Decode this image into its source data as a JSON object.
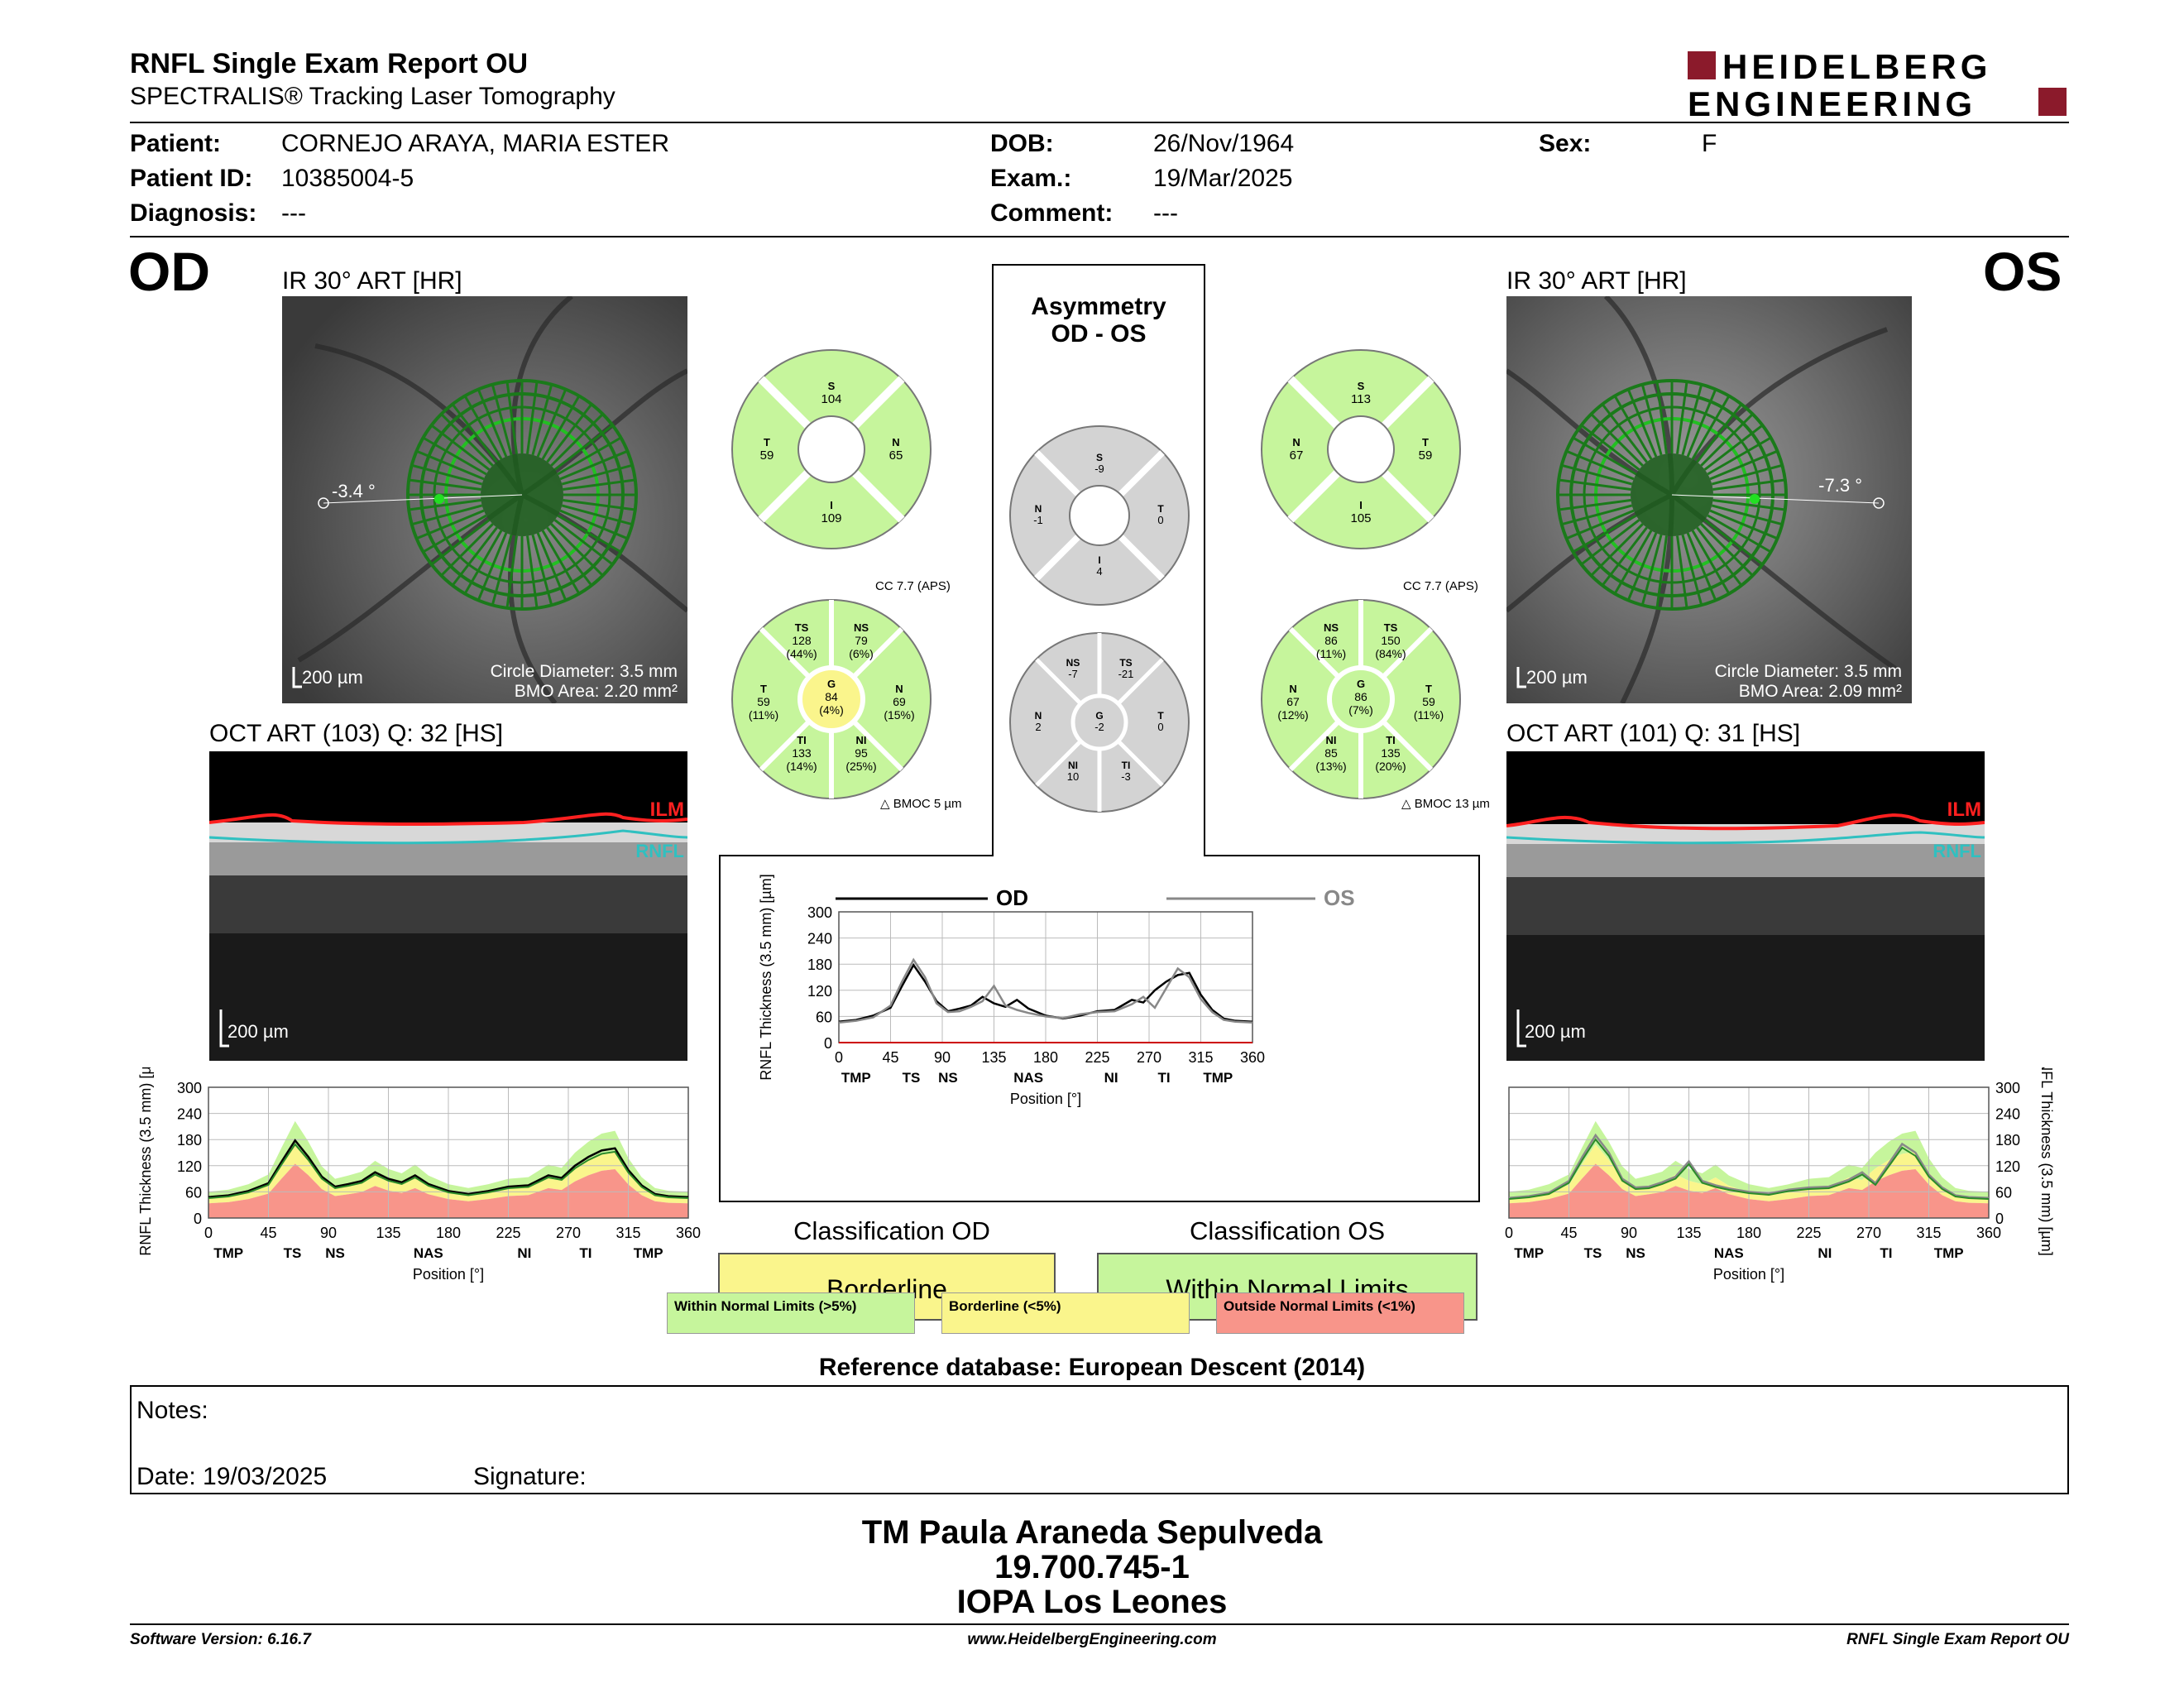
{
  "header": {
    "title": "RNFL Single Exam Report OU",
    "subtitle": "SPECTRALIS® Tracking Laser Tomography",
    "brand_top": "HEIDELBERG",
    "brand_bottom": "ENGINEERING"
  },
  "patient": {
    "patient_label": "Patient:",
    "patient": "CORNEJO ARAYA, MARIA ESTER",
    "id_label": "Patient ID:",
    "id": "10385004-5",
    "diagnosis_label": "Diagnosis:",
    "diagnosis": "---",
    "dob_label": "DOB:",
    "dob": "26/Nov/1964",
    "exam_label": "Exam.:",
    "exam": "19/Mar/2025",
    "comment_label": "Comment:",
    "comment": "---",
    "sex_label": "Sex:",
    "sex": "F"
  },
  "od": {
    "eye": "OD",
    "ir_title": "IR 30° ART [HR]",
    "angle": "-3.4 °",
    "scale": "200 µm",
    "circle_diameter": "Circle Diameter: 3.5 mm",
    "bmo_area": "BMO Area: 2.20 mm²",
    "oct_title": "OCT ART (103) Q: 32 [HS]",
    "oct_scale": "200 µm",
    "ilm": "ILM",
    "rnfl": "RNFL",
    "quad": {
      "S": "104",
      "T": "59",
      "N": "65",
      "I": "109"
    },
    "cc": "CC 7.7 (APS)",
    "bmoc": "BMOC 5 µm",
    "sectors": {
      "TS": [
        "128",
        "(44%)"
      ],
      "NS": [
        "79",
        "(6%)"
      ],
      "T": [
        "59",
        "(11%)"
      ],
      "G": [
        "84",
        "(4%)"
      ],
      "N": [
        "69",
        "(15%)"
      ],
      "TI": [
        "133",
        "(14%)"
      ],
      "NI": [
        "95",
        "(25%)"
      ]
    }
  },
  "os": {
    "eye": "OS",
    "ir_title": "IR 30° ART [HR]",
    "angle": "-7.3 °",
    "scale": "200 µm",
    "circle_diameter": "Circle Diameter: 3.5 mm",
    "bmo_area": "BMO Area: 2.09 mm²",
    "oct_title": "OCT ART (101) Q: 31 [HS]",
    "oct_scale": "200 µm",
    "ilm": "ILM",
    "rnfl": "RNFL",
    "quad": {
      "S": "113",
      "N": "67",
      "T": "59",
      "I": "105"
    },
    "cc": "CC 7.7 (APS)",
    "bmoc": "BMOC 13 µm",
    "sectors": {
      "NS": [
        "86",
        "(11%)"
      ],
      "TS": [
        "150",
        "(84%)"
      ],
      "N": [
        "67",
        "(12%)"
      ],
      "G": [
        "86",
        "(7%)"
      ],
      "T": [
        "59",
        "(11%)"
      ],
      "NI": [
        "85",
        "(13%)"
      ],
      "TI": [
        "135",
        "(20%)"
      ]
    }
  },
  "asymmetry": {
    "title1": "Asymmetry",
    "title2": "OD - OS",
    "quad": {
      "S": "-9",
      "N": "-1",
      "T": "0",
      "I": "4"
    },
    "sectors": {
      "NS": "-7",
      "TS": "-21",
      "N": "2",
      "G": "-2",
      "T": "0",
      "NI": "10",
      "TI": "-3"
    }
  },
  "charts": {
    "ylabel": "RNFL Thickness (3.5 mm) [µm]",
    "xlabel": "Position [°]",
    "od_legend": "OD",
    "os_legend": "OS",
    "sector_labels": [
      "TMP",
      "TS",
      "NS",
      "NAS",
      "NI",
      "TI",
      "TMP"
    ]
  },
  "chart_data": [
    {
      "type": "line",
      "xlabel": "Position [°]",
      "ylabel": "RNFL Thickness (3.5 mm) [µm]",
      "xlim": [
        0,
        360
      ],
      "ylim": [
        0,
        300
      ],
      "xticks": [
        0,
        45,
        90,
        135,
        180,
        225,
        270,
        315,
        360
      ],
      "yticks": [
        0,
        60,
        120,
        180,
        240,
        300
      ],
      "x": [
        0,
        15,
        30,
        45,
        55,
        65,
        75,
        85,
        95,
        105,
        115,
        125,
        135,
        145,
        155,
        165,
        180,
        195,
        210,
        225,
        240,
        255,
        265,
        275,
        285,
        295,
        305,
        315,
        325,
        335,
        345,
        360
      ],
      "series": [
        {
          "name": "OD",
          "values": [
            48,
            52,
            62,
            80,
            130,
            178,
            140,
            95,
            72,
            78,
            85,
            105,
            90,
            82,
            98,
            78,
            62,
            55,
            62,
            72,
            75,
            98,
            92,
            120,
            140,
            155,
            160,
            110,
            75,
            55,
            50,
            48
          ]
        },
        {
          "name": "OS",
          "values": [
            46,
            50,
            58,
            85,
            140,
            190,
            150,
            90,
            70,
            72,
            82,
            95,
            130,
            85,
            75,
            68,
            60,
            56,
            65,
            70,
            72,
            88,
            105,
            80,
            125,
            170,
            150,
            100,
            70,
            52,
            48,
            46
          ]
        }
      ]
    }
  ],
  "classification": {
    "od_title": "Classification OD",
    "od_value": "Borderline",
    "os_title": "Classification OS",
    "os_value": "Within Normal Limits"
  },
  "legend": {
    "wnl": "Within Normal Limits (>5%)",
    "bl": "Borderline (<5%)",
    "onl": "Outside Normal Limits (<1%)"
  },
  "reference": "Reference database: European Descent (2014)",
  "notes": {
    "label": "Notes:",
    "date": "Date: 19/03/2025",
    "signature": "Signature:"
  },
  "footer": {
    "name": "TM Paula Araneda Sepulveda",
    "id": "19.700.745-1",
    "org": "IOPA Los Leones",
    "software": "Software Version: 6.16.7",
    "url": "www.HeidelbergEngineering.com",
    "report": "RNFL Single Exam Report OU"
  },
  "colors": {
    "normal": "#c6f59c",
    "borderline": "#faf58c",
    "outside": "#f8958a",
    "grey": "#d3d3d3",
    "od_line": "#000000",
    "os_line": "#888888"
  }
}
